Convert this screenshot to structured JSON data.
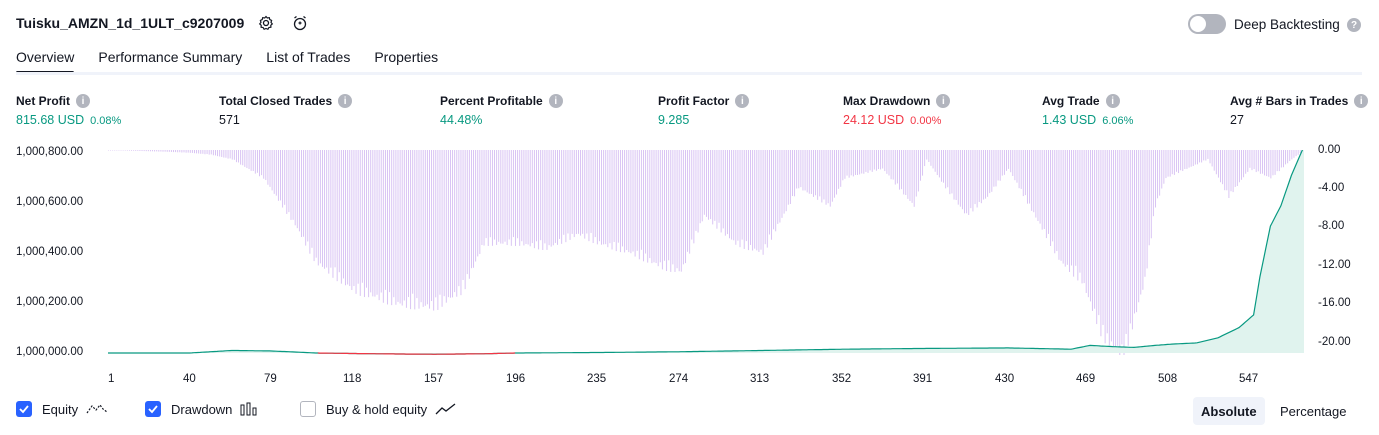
{
  "header": {
    "title": "Tuisku_AMZN_1d_1ULT_c9207009",
    "deep_backtesting_label": "Deep Backtesting"
  },
  "tabs": [
    {
      "label": "Overview",
      "active": true
    },
    {
      "label": "Performance Summary",
      "active": false
    },
    {
      "label": "List of Trades",
      "active": false
    },
    {
      "label": "Properties",
      "active": false
    }
  ],
  "metrics": [
    {
      "label": "Net Profit",
      "value": "815.68 USD",
      "pct": "0.08%",
      "color": "#089981"
    },
    {
      "label": "Total Closed Trades",
      "value": "571",
      "pct": "",
      "color": "#131722"
    },
    {
      "label": "Percent Profitable",
      "value": "44.48%",
      "pct": "",
      "color": "#089981"
    },
    {
      "label": "Profit Factor",
      "value": "9.285",
      "pct": "",
      "color": "#089981"
    },
    {
      "label": "Max Drawdown",
      "value": "24.12 USD",
      "pct": "0.00%",
      "color": "#f23645"
    },
    {
      "label": "Avg Trade",
      "value": "1.43 USD",
      "pct": "6.06%",
      "color": "#089981"
    },
    {
      "label": "Avg # Bars in Trades",
      "value": "27",
      "pct": "",
      "color": "#131722"
    }
  ],
  "chart": {
    "left_axis": [
      "1,000,800.00",
      "1,000,600.00",
      "1,000,400.00",
      "1,000,200.00",
      "1,000,000.00"
    ],
    "right_axis": [
      "0.00",
      "-4.00",
      "-8.00",
      "-12.00",
      "-16.00",
      "-20.00"
    ],
    "x_axis": [
      "1",
      "40",
      "79",
      "118",
      "157",
      "196",
      "235",
      "274",
      "313",
      "352",
      "391",
      "430",
      "469",
      "508",
      "547"
    ],
    "colors": {
      "equity": "#089981",
      "equity_loss": "#f23645",
      "drawdown": "#b388e8",
      "area": "#e0f3ee"
    }
  },
  "chart_data": {
    "type": "area",
    "x_range": [
      1,
      571
    ],
    "left_ylim": [
      1000000,
      1000800
    ],
    "right_ylim": [
      -20,
      0
    ],
    "equity_series": {
      "x": [
        1,
        20,
        40,
        50,
        60,
        79,
        100,
        118,
        140,
        157,
        180,
        196,
        235,
        274,
        313,
        352,
        391,
        430,
        460,
        469,
        480,
        490,
        500,
        508,
        520,
        530,
        540,
        547,
        550,
        555,
        560,
        565,
        571
      ],
      "y": [
        1000000,
        1000000,
        1000000,
        1000005,
        1000010,
        1000008,
        1000000,
        999998,
        999996,
        999995,
        999997,
        1000000,
        1000002,
        1000005,
        1000010,
        1000015,
        1000018,
        1000020,
        1000015,
        1000030,
        1000025,
        1000022,
        1000030,
        1000035,
        1000040,
        1000060,
        1000100,
        1000150,
        1000300,
        1000500,
        1000580,
        1000700,
        1000815
      ]
    },
    "drawdown_series": {
      "x": [
        1,
        30,
        40,
        50,
        60,
        75,
        90,
        100,
        118,
        140,
        157,
        170,
        180,
        196,
        210,
        225,
        235,
        250,
        265,
        274,
        285,
        300,
        313,
        330,
        345,
        352,
        370,
        385,
        391,
        400,
        410,
        420,
        430,
        440,
        450,
        455,
        465,
        475,
        485,
        495,
        500,
        505,
        515,
        525,
        535,
        545,
        555,
        565,
        571
      ],
      "y": [
        0,
        -0.2,
        -0.3,
        -0.5,
        -1,
        -3,
        -8,
        -12,
        -15,
        -16.5,
        -16.8,
        -15,
        -10,
        -10,
        -10.5,
        -9,
        -10,
        -11,
        -12.5,
        -13,
        -7,
        -10,
        -11,
        -4,
        -6,
        -3,
        -2,
        -6,
        -1,
        -4,
        -7,
        -5,
        -2,
        -6,
        -10,
        -12,
        -14,
        -20,
        -22,
        -14,
        -6,
        -3,
        -2,
        -1,
        -5,
        -2,
        -3,
        -1,
        0
      ]
    }
  },
  "legend": {
    "equity_label": "Equity",
    "drawdown_label": "Drawdown",
    "buyhold_label": "Buy & hold equity"
  },
  "mode": {
    "absolute_label": "Absolute",
    "percentage_label": "Percentage"
  }
}
